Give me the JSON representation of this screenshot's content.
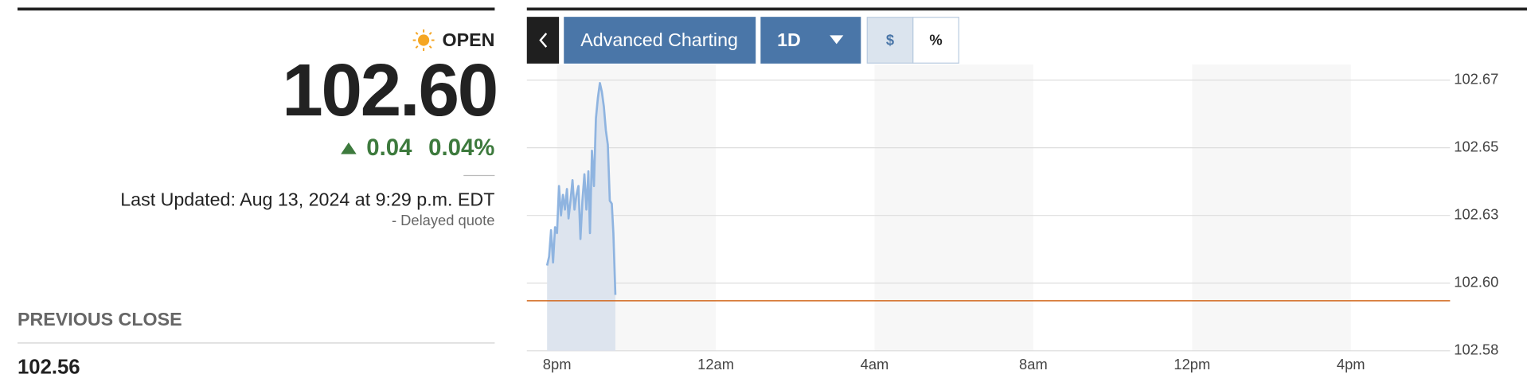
{
  "quote": {
    "status": "OPEN",
    "price": "102.60",
    "change": "0.04",
    "change_pct": "0.04%",
    "last_updated": "Last Updated: Aug 13, 2024 at 9:29 p.m. EDT",
    "delayed": "-  Delayed quote",
    "previous_close_label": "PREVIOUS CLOSE",
    "previous_close": "102.56"
  },
  "toolbar": {
    "advanced": "Advanced Charting",
    "range": "1D",
    "dollar": "$",
    "percent": "%"
  },
  "chart_data": {
    "type": "line",
    "color": "#8fb4e0",
    "area_color": "#dde4ee",
    "band_color": "#f7f7f7",
    "reference_line": 102.597,
    "reference_color": "#d2691e",
    "grid": true,
    "x": [
      19.75,
      19.8,
      19.85,
      19.9,
      19.95,
      20.0,
      20.05,
      20.1,
      20.15,
      20.2,
      20.25,
      20.29,
      20.34,
      20.39,
      20.44,
      20.49,
      20.54,
      20.59,
      20.64,
      20.69,
      20.74,
      20.79,
      20.83,
      20.88,
      20.93,
      20.98,
      21.03,
      21.08,
      21.13,
      21.18,
      21.23,
      21.28,
      21.33,
      21.38,
      21.42,
      21.47
    ],
    "values": [
      102.609,
      102.612,
      102.621,
      102.61,
      102.622,
      102.62,
      102.636,
      102.626,
      102.633,
      102.628,
      102.635,
      102.625,
      102.631,
      102.638,
      102.628,
      102.633,
      102.636,
      102.618,
      102.631,
      102.64,
      102.628,
      102.641,
      102.62,
      102.648,
      102.636,
      102.659,
      102.666,
      102.671,
      102.668,
      102.663,
      102.655,
      102.65,
      102.631,
      102.63,
      102.62,
      102.599
    ],
    "xlim": [
      19.24,
      42.5
    ],
    "xticks": [
      {
        "value": 20,
        "label": "8pm"
      },
      {
        "value": 24,
        "label": "12am"
      },
      {
        "value": 28,
        "label": "4am"
      },
      {
        "value": 32,
        "label": "8am"
      },
      {
        "value": 36,
        "label": "12pm"
      },
      {
        "value": 40,
        "label": "4pm"
      }
    ],
    "ylim": [
      102.58,
      102.672
    ],
    "yticks": [
      102.58,
      {
        "value": 102.603,
        "label": "102.60"
      },
      {
        "value": 102.626,
        "label": "102.63"
      },
      {
        "value": 102.649,
        "label": "102.65"
      },
      {
        "value": 102.672,
        "label": "102.67"
      }
    ]
  }
}
